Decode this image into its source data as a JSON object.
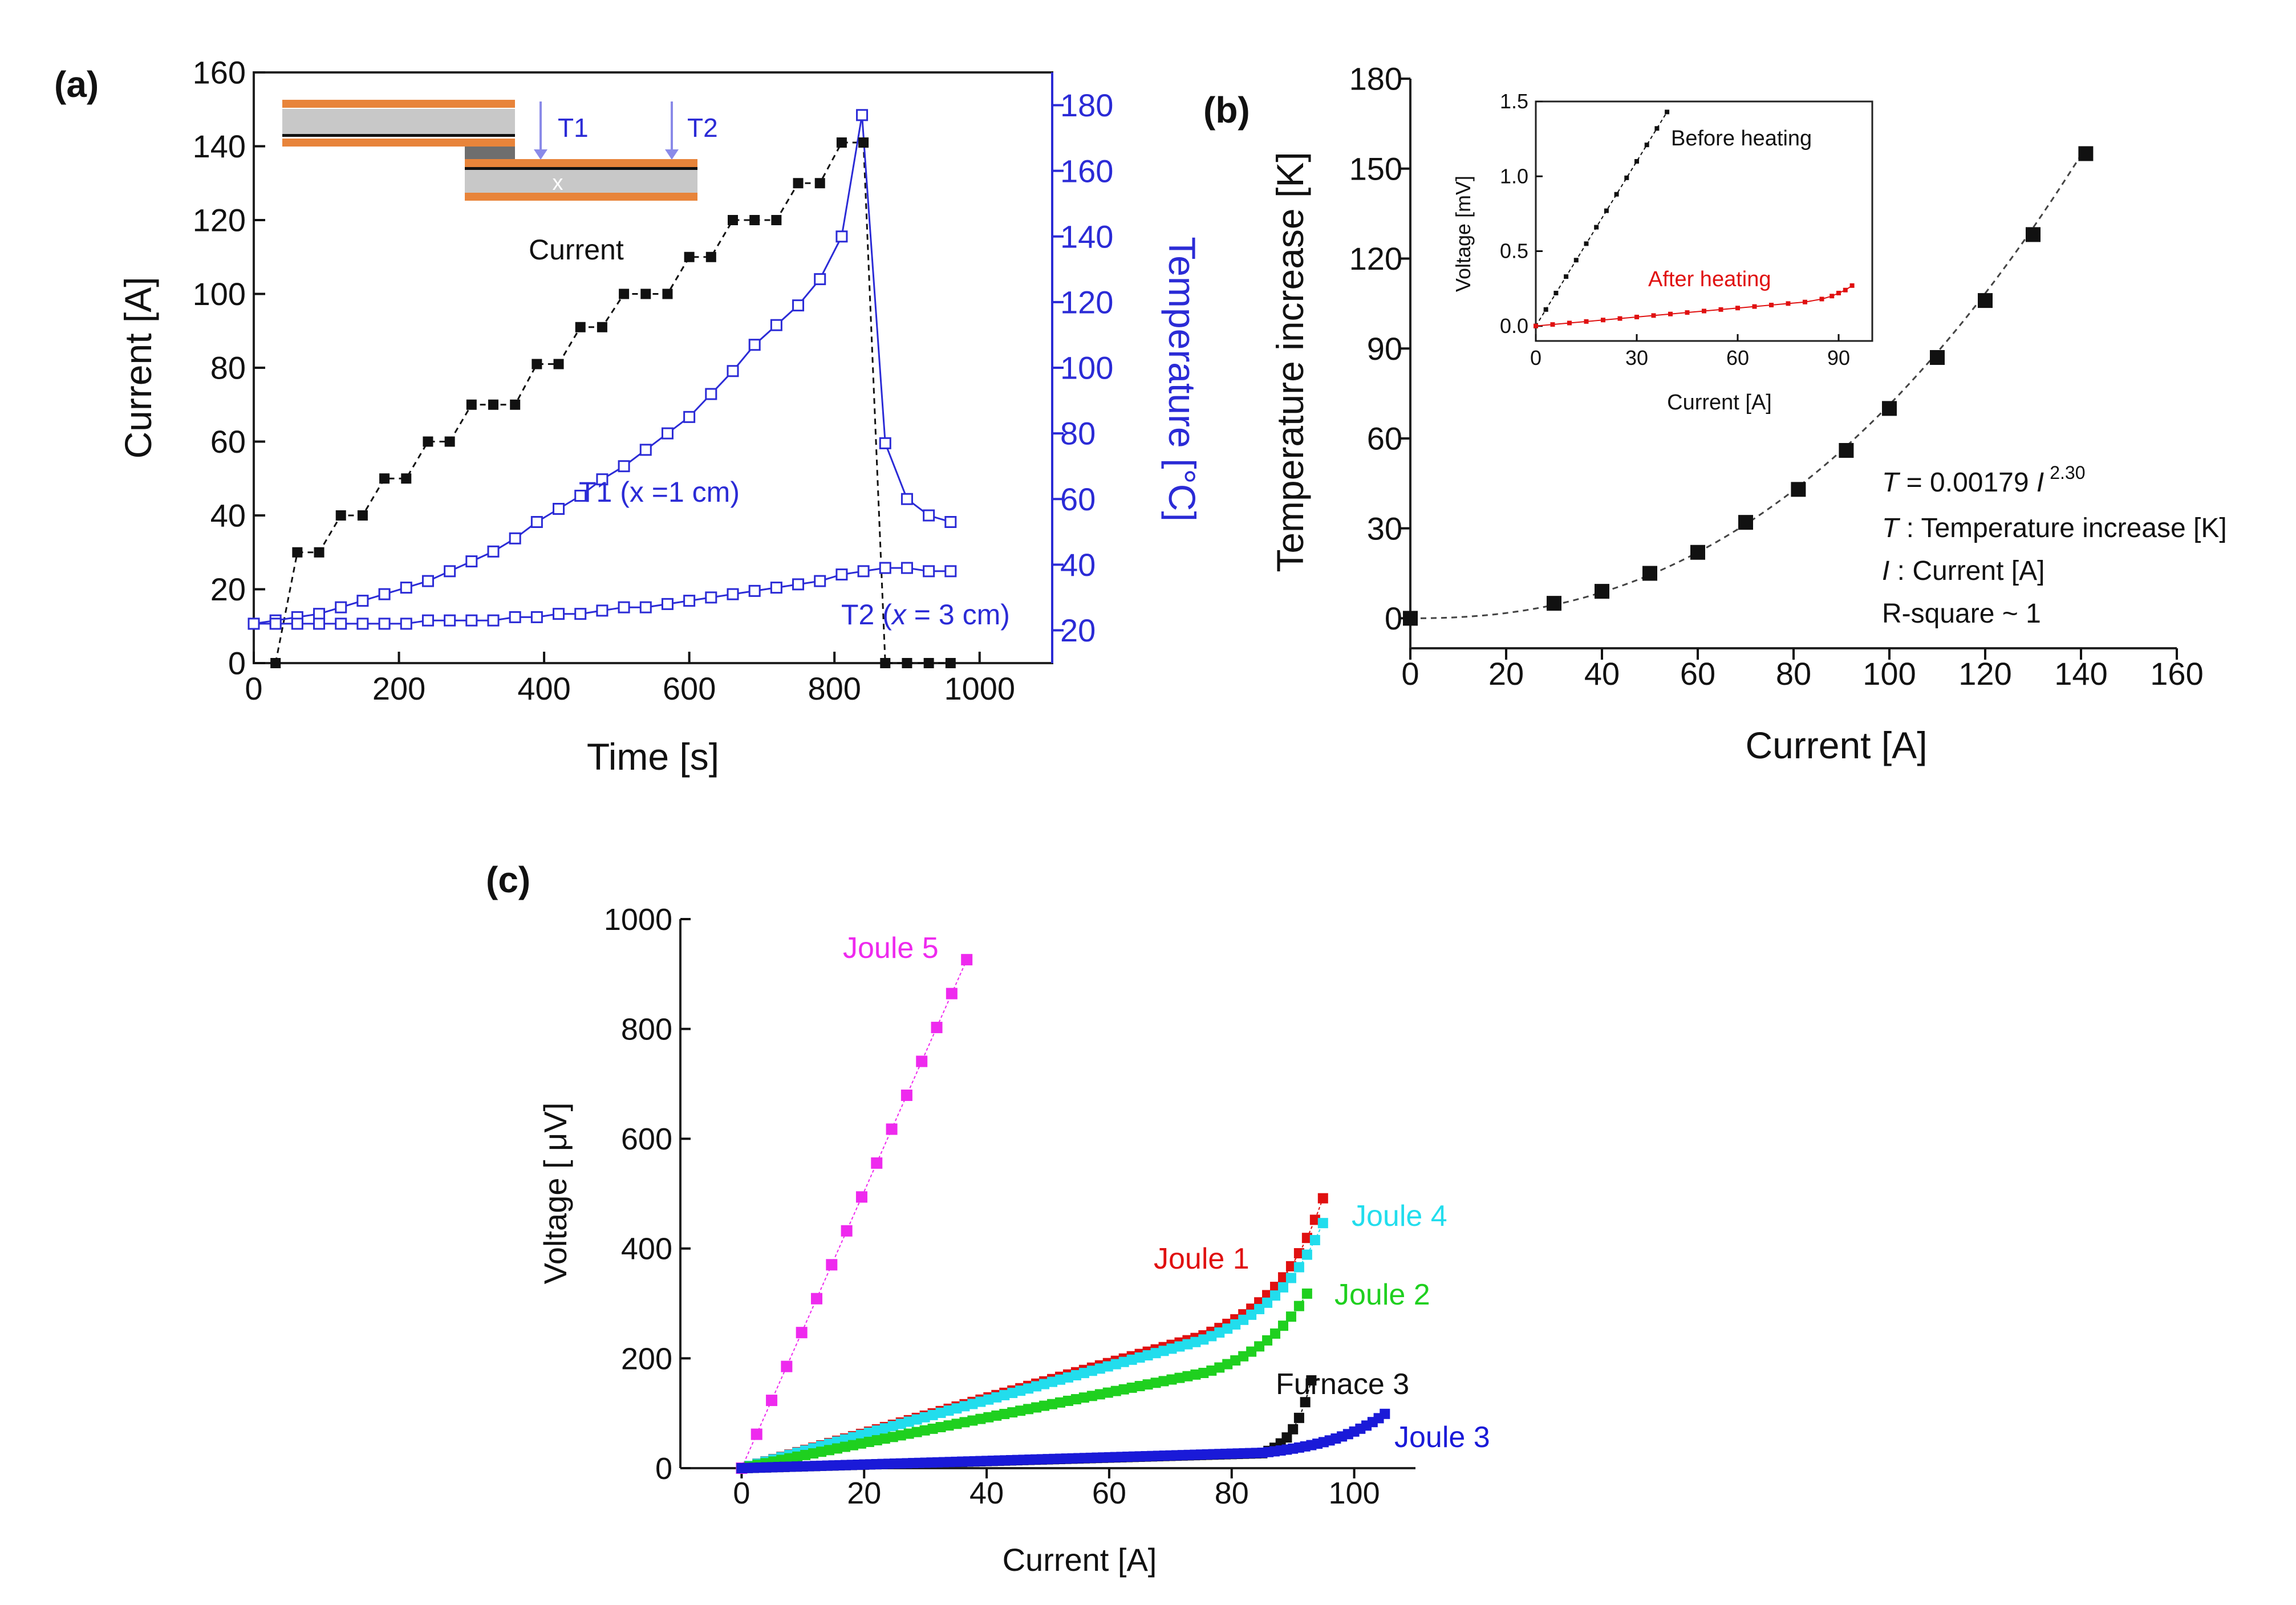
{
  "panels": {
    "a": {
      "label": "(a)"
    },
    "b": {
      "label": "(b)"
    },
    "c": {
      "label": "(c)"
    }
  },
  "colors": {
    "black": "#111111",
    "blue": "#2b2bd6",
    "red": "#e01010",
    "green": "#1fd01f",
    "cyan": "#22dded",
    "magenta": "#ee2aee",
    "navy": "#1a1ad8",
    "orange": "#e8843a",
    "gray": "#bdbdbd",
    "darkgray": "#6e6e6e"
  },
  "chart_data": [
    {
      "id": "a",
      "type": "line",
      "title": "",
      "xlabel": "Time [s]",
      "ylabel": "Current [A]",
      "ylabel_right": "Temperature [°C]",
      "xlim": [
        0,
        1100
      ],
      "ylim": [
        0,
        160
      ],
      "ylim_right": [
        10,
        190
      ],
      "x_ticks": [
        0,
        200,
        400,
        600,
        800,
        1000
      ],
      "y_ticks": [
        0,
        20,
        40,
        60,
        80,
        100,
        120,
        140,
        160
      ],
      "y_ticks_right": [
        20,
        40,
        60,
        80,
        100,
        120,
        140,
        160,
        180
      ],
      "annotations": {
        "current": "Current",
        "t1_curve": "T1 (x =1 cm)",
        "t2_prefix": "T2  (",
        "t2_var": "x",
        "t2_suffix": " = 3 cm)",
        "inset_t1": "T1",
        "inset_t2": "T2",
        "inset_x": "x"
      },
      "series": [
        {
          "name": "Current",
          "axis": "left",
          "marker": "filled-square",
          "color": "#111111",
          "x": [
            30,
            60,
            90,
            120,
            150,
            180,
            210,
            240,
            270,
            300,
            330,
            360,
            390,
            420,
            450,
            480,
            510,
            540,
            570,
            600,
            630,
            660,
            690,
            720,
            750,
            780,
            810,
            840,
            870,
            900,
            930,
            960
          ],
          "y": [
            0,
            30,
            30,
            40,
            40,
            50,
            50,
            60,
            60,
            70,
            70,
            70,
            81,
            81,
            91,
            91,
            100,
            100,
            100,
            110,
            110,
            120,
            120,
            120,
            130,
            130,
            141,
            141,
            0,
            0,
            0,
            0
          ]
        },
        {
          "name": "T1 (x =1 cm)",
          "axis": "right",
          "marker": "open-square",
          "color": "#2b2bd6",
          "x": [
            0,
            30,
            60,
            90,
            120,
            150,
            180,
            210,
            240,
            270,
            300,
            330,
            360,
            390,
            420,
            450,
            480,
            510,
            540,
            570,
            600,
            630,
            660,
            690,
            720,
            750,
            780,
            810,
            838,
            870,
            900,
            930,
            960
          ],
          "y": [
            22,
            23,
            24,
            25,
            27,
            29,
            31,
            33,
            35,
            38,
            41,
            44,
            48,
            53,
            57,
            61,
            66,
            70,
            75,
            80,
            85,
            92,
            99,
            107,
            113,
            119,
            127,
            140,
            177,
            77,
            60,
            55,
            53
          ]
        },
        {
          "name": "T2 (x = 3 cm)",
          "axis": "right",
          "marker": "open-square",
          "color": "#2b2bd6",
          "x": [
            0,
            30,
            60,
            90,
            120,
            150,
            180,
            210,
            240,
            270,
            300,
            330,
            360,
            390,
            420,
            450,
            480,
            510,
            540,
            570,
            600,
            630,
            660,
            690,
            720,
            750,
            780,
            810,
            840,
            870,
            900,
            930,
            960
          ],
          "y": [
            22,
            22,
            22,
            22,
            22,
            22,
            22,
            22,
            23,
            23,
            23,
            23,
            24,
            24,
            25,
            25,
            26,
            27,
            27,
            28,
            29,
            30,
            31,
            32,
            33,
            34,
            35,
            37,
            38,
            39,
            39,
            38,
            38
          ]
        }
      ]
    },
    {
      "id": "b",
      "type": "scatter",
      "title": "",
      "xlabel": "Current [A]",
      "ylabel": "Temperature increase [K]",
      "xlim": [
        0,
        160
      ],
      "ylim": [
        -10,
        180
      ],
      "x_ticks": [
        0,
        20,
        40,
        60,
        80,
        100,
        120,
        140,
        160
      ],
      "y_ticks": [
        0,
        30,
        60,
        90,
        120,
        150,
        180
      ],
      "fit": {
        "coefficient": 0.00179,
        "exponent": 2.3
      },
      "annotations": {
        "eq_var": "T",
        "eq_rest": " = 0.00179 ",
        "eq_var2": "I",
        "eq_exp": "2.30",
        "def_t_var": "T",
        "def_t": " : Temperature increase [K]",
        "def_i_var": "I",
        "def_i": " : Current [A]",
        "rsq": "R-square ~ 1"
      },
      "series": [
        {
          "name": "Temperature increase",
          "marker": "filled-square",
          "color": "#111111",
          "x": [
            0,
            30,
            40,
            50,
            60,
            70,
            81,
            91,
            100,
            110,
            120,
            130,
            141
          ],
          "y": [
            0,
            5,
            9,
            15,
            22,
            32,
            43,
            56,
            70,
            87,
            106,
            128,
            155
          ]
        }
      ],
      "inset": {
        "type": "line",
        "xlabel": "Current [A]",
        "ylabel": "Voltage [mV]",
        "xlim": [
          0,
          100
        ],
        "ylim": [
          -0.1,
          1.5
        ],
        "x_ticks": [
          0,
          30,
          60,
          90
        ],
        "y_ticks": [
          0.0,
          0.5,
          1.0,
          1.5
        ],
        "series": [
          {
            "name": "Before heating",
            "color": "#111111",
            "x": [
              0,
              3,
              6,
              9,
              12,
              15,
              18,
              21,
              24,
              27,
              30,
              33,
              36,
              39
            ],
            "y": [
              0.0,
              0.11,
              0.22,
              0.33,
              0.44,
              0.55,
              0.66,
              0.77,
              0.88,
              0.99,
              1.1,
              1.21,
              1.32,
              1.43
            ]
          },
          {
            "name": "After heating",
            "color": "#e01010",
            "x": [
              0,
              5,
              10,
              15,
              20,
              25,
              30,
              35,
              40,
              45,
              50,
              55,
              60,
              65,
              70,
              75,
              80,
              85,
              88,
              90,
              92,
              94
            ],
            "y": [
              0.0,
              0.01,
              0.02,
              0.03,
              0.04,
              0.05,
              0.06,
              0.07,
              0.08,
              0.09,
              0.1,
              0.11,
              0.12,
              0.13,
              0.14,
              0.15,
              0.16,
              0.18,
              0.2,
              0.22,
              0.24,
              0.27
            ]
          }
        ]
      }
    },
    {
      "id": "c",
      "type": "scatter",
      "title": "",
      "xlabel": "Current [A]",
      "ylabel": "Voltage [ μV]",
      "xlim": [
        -10,
        110
      ],
      "ylim": [
        0,
        1000
      ],
      "x_ticks": [
        0,
        20,
        40,
        60,
        80,
        100
      ],
      "y_ticks": [
        0,
        200,
        400,
        600,
        800,
        1000
      ],
      "series": [
        {
          "name": "Joule 5",
          "color": "#ee2aee",
          "curve": {
            "type": "linear",
            "slope": 25.2,
            "max": 39,
            "step": 2.45
          }
        },
        {
          "name": "Joule 1",
          "color": "#e01010",
          "curve": {
            "type": "linear-exp",
            "slope": 3.2,
            "a": 10,
            "b": 0.15,
            "x0": 75,
            "max": 95,
            "step": 1.3
          }
        },
        {
          "name": "Joule 4",
          "color": "#22dded",
          "curve": {
            "type": "linear-exp",
            "slope": 3.1,
            "a": 10,
            "b": 0.14,
            "x0": 75,
            "max": 96,
            "step": 1.3
          }
        },
        {
          "name": "Joule 2",
          "color": "#1fd01f",
          "curve": {
            "type": "linear-exp",
            "slope": 2.3,
            "a": 12,
            "b": 0.14,
            "x0": 76,
            "max": 93,
            "step": 1.3
          }
        },
        {
          "name": "Furnace 3",
          "color": "#111111",
          "curve": {
            "type": "linear-exp",
            "slope": 0.32,
            "a": 10,
            "b": 0.33,
            "x0": 85,
            "max": 93,
            "step": 1.0
          }
        },
        {
          "name": "Joule 3",
          "color": "#1a1ad8",
          "curve": {
            "type": "linear-exp",
            "slope": 0.33,
            "a": 8,
            "b": 0.11,
            "x0": 85,
            "max": 105,
            "step": 1.0
          }
        }
      ]
    }
  ]
}
